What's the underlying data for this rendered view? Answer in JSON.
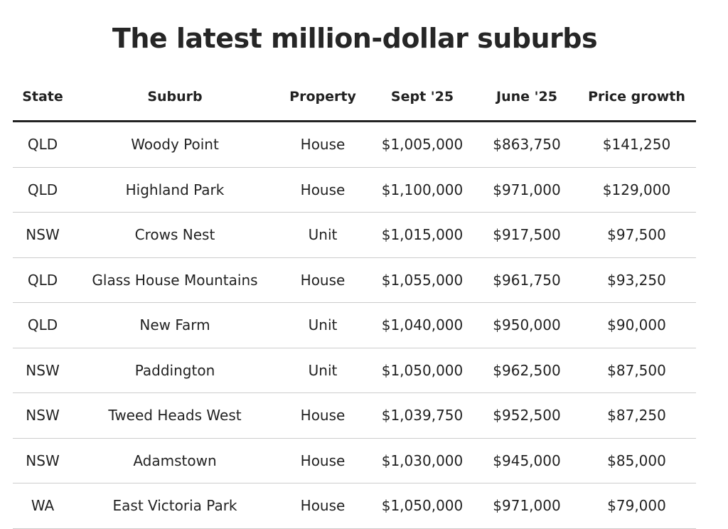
{
  "header": {
    "title": "The latest million-dollar suburbs"
  },
  "table": {
    "columns": [
      "State",
      "Suburb",
      "Property",
      "Sept '25",
      "June '25",
      "Price growth"
    ],
    "rows": [
      [
        "QLD",
        "Woody Point",
        "House",
        "$1,005,000",
        "$863,750",
        "$141,250"
      ],
      [
        "QLD",
        "Highland Park",
        "House",
        "$1,100,000",
        "$971,000",
        "$129,000"
      ],
      [
        "NSW",
        "Crows Nest",
        "Unit",
        "$1,015,000",
        "$917,500",
        "$97,500"
      ],
      [
        "QLD",
        "Glass House Mountains",
        "House",
        "$1,055,000",
        "$961,750",
        "$93,250"
      ],
      [
        "QLD",
        "New Farm",
        "Unit",
        "$1,040,000",
        "$950,000",
        "$90,000"
      ],
      [
        "NSW",
        "Paddington",
        "Unit",
        "$1,050,000",
        "$962,500",
        "$87,500"
      ],
      [
        "NSW",
        "Tweed Heads West",
        "House",
        "$1,039,750",
        "$952,500",
        "$87,250"
      ],
      [
        "NSW",
        "Adamstown",
        "House",
        "$1,030,000",
        "$945,000",
        "$85,000"
      ],
      [
        "WA",
        "East Victoria Park",
        "House",
        "$1,050,000",
        "$971,000",
        "$79,000"
      ]
    ]
  }
}
